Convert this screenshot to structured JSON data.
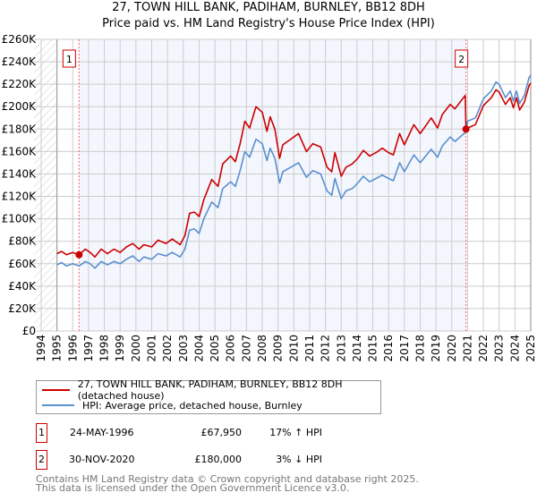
{
  "chart_data": {
    "type": "line",
    "title": "27, TOWN HILL BANK, PADIHAM, BURNLEY, BB12 8DH",
    "subtitle": "Price paid vs. HM Land Registry's House Price Index (HPI)",
    "xlabel": "",
    "ylabel": "",
    "xlim": [
      1994,
      2025
    ],
    "ylim": [
      0,
      260000
    ],
    "grid": true,
    "x_ticks": [
      "1994",
      "1995",
      "1996",
      "1997",
      "1998",
      "1999",
      "2000",
      "2001",
      "2002",
      "2003",
      "2004",
      "2005",
      "2006",
      "2007",
      "2008",
      "2009",
      "2010",
      "2011",
      "2012",
      "2013",
      "2014",
      "2015",
      "2016",
      "2017",
      "2018",
      "2019",
      "2020",
      "2021",
      "2022",
      "2023",
      "2024",
      "2025"
    ],
    "y_ticks": [
      {
        "value": 0,
        "label": "£0"
      },
      {
        "value": 20000,
        "label": "£20K"
      },
      {
        "value": 40000,
        "label": "£40K"
      },
      {
        "value": 60000,
        "label": "£60K"
      },
      {
        "value": 80000,
        "label": "£80K"
      },
      {
        "value": 100000,
        "label": "£100K"
      },
      {
        "value": 120000,
        "label": "£120K"
      },
      {
        "value": 140000,
        "label": "£140K"
      },
      {
        "value": 160000,
        "label": "£160K"
      },
      {
        "value": 180000,
        "label": "£180K"
      },
      {
        "value": 200000,
        "label": "£200K"
      },
      {
        "value": 220000,
        "label": "£220K"
      },
      {
        "value": 240000,
        "label": "£240K"
      },
      {
        "value": 260000,
        "label": "£260K"
      }
    ],
    "x": [
      1995.0,
      1995.3,
      1995.6,
      1996.0,
      1996.4,
      1996.8,
      1997.1,
      1997.4,
      1997.8,
      1998.2,
      1998.6,
      1999.0,
      1999.4,
      1999.8,
      2000.2,
      2000.5,
      2001.0,
      2001.4,
      2001.9,
      2002.3,
      2002.8,
      2003.1,
      2003.4,
      2003.7,
      2004.0,
      2004.3,
      2004.8,
      2005.2,
      2005.5,
      2006.0,
      2006.3,
      2006.6,
      2006.9,
      2007.2,
      2007.6,
      2008.0,
      2008.3,
      2008.5,
      2008.8,
      2009.1,
      2009.3,
      2009.8,
      2010.3,
      2010.8,
      2011.2,
      2011.7,
      2012.1,
      2012.4,
      2012.6,
      2013.0,
      2013.3,
      2013.7,
      2014.05,
      2014.4,
      2014.8,
      2015.2,
      2015.6,
      2016.0,
      2016.3,
      2016.7,
      2017.0,
      2017.6,
      2018.0,
      2018.7,
      2019.1,
      2019.4,
      2019.9,
      2020.2,
      2020.85,
      2020.9,
      2021.0,
      2021.5,
      2022.0,
      2022.5,
      2022.8,
      2023.0,
      2023.4,
      2023.7,
      2023.9,
      2024.1,
      2024.3,
      2024.6,
      2024.9,
      2025.0
    ],
    "series": [
      {
        "name": "27, TOWN HILL BANK, PADIHAM, BURNLEY, BB12 8DH (detached house)",
        "color": "#cc0000",
        "values": [
          69000,
          71000,
          68000,
          70000,
          68000,
          73000,
          70000,
          66000,
          73000,
          69000,
          73000,
          70000,
          75000,
          78000,
          73000,
          77000,
          75000,
          81000,
          78000,
          82000,
          77000,
          85000,
          105000,
          106000,
          102000,
          117000,
          135000,
          129000,
          149000,
          156000,
          151000,
          167000,
          187000,
          181000,
          200000,
          195000,
          178000,
          191000,
          180000,
          154000,
          166000,
          171000,
          176000,
          160000,
          167000,
          164000,
          146000,
          142000,
          159000,
          138000,
          146000,
          149000,
          154000,
          161000,
          156000,
          159000,
          163000,
          159000,
          157000,
          176000,
          166000,
          184000,
          176000,
          190000,
          181000,
          193000,
          202000,
          198000,
          210000,
          180000,
          181000,
          184000,
          201000,
          208000,
          215000,
          213000,
          202000,
          208000,
          199000,
          208000,
          197000,
          204000,
          219000,
          221000
        ]
      },
      {
        "name": "HPI: Average price, detached house, Burnley",
        "color": "#5b8fd0",
        "values": [
          59000,
          61000,
          58000,
          60000,
          58000,
          62000,
          60000,
          56000,
          62000,
          59000,
          62000,
          60000,
          64000,
          67000,
          62000,
          66000,
          64000,
          69000,
          67000,
          70000,
          66000,
          73000,
          90000,
          91000,
          87000,
          100000,
          115000,
          110000,
          127000,
          133000,
          129000,
          143000,
          160000,
          155000,
          171000,
          167000,
          152000,
          163000,
          154000,
          132000,
          142000,
          146000,
          150000,
          137000,
          143000,
          140000,
          125000,
          121000,
          136000,
          118000,
          125000,
          127000,
          132000,
          138000,
          133000,
          136000,
          139000,
          136000,
          134000,
          150000,
          142000,
          157000,
          150000,
          162000,
          155000,
          165000,
          173000,
          169000,
          177000,
          178000,
          187000,
          190000,
          207000,
          214000,
          222000,
          220000,
          208000,
          214000,
          205000,
          214000,
          203000,
          210000,
          226000,
          228000
        ]
      }
    ],
    "annotations": [
      {
        "label": "1",
        "x": 1996.4,
        "value": 67950
      },
      {
        "label": "2",
        "x": 2020.9,
        "value": 180000
      }
    ]
  },
  "legend": {
    "items": [
      {
        "label": "27, TOWN HILL BANK, PADIHAM, BURNLEY, BB12 8DH (detached house)",
        "color": "#cc0000"
      },
      {
        "label": "HPI: Average price, detached house, Burnley",
        "color": "#5b8fd0"
      }
    ]
  },
  "sales": [
    {
      "num": "1",
      "date": "24-MAY-1996",
      "price": "£67,950",
      "hpi": "17% ↑ HPI"
    },
    {
      "num": "2",
      "date": "30-NOV-2020",
      "price": "£180,000",
      "hpi": "3% ↓ HPI"
    }
  ],
  "footer": {
    "line1": "Contains HM Land Registry data © Crown copyright and database right 2025.",
    "line2": "This data is licensed under the Open Government Licence v3.0."
  }
}
